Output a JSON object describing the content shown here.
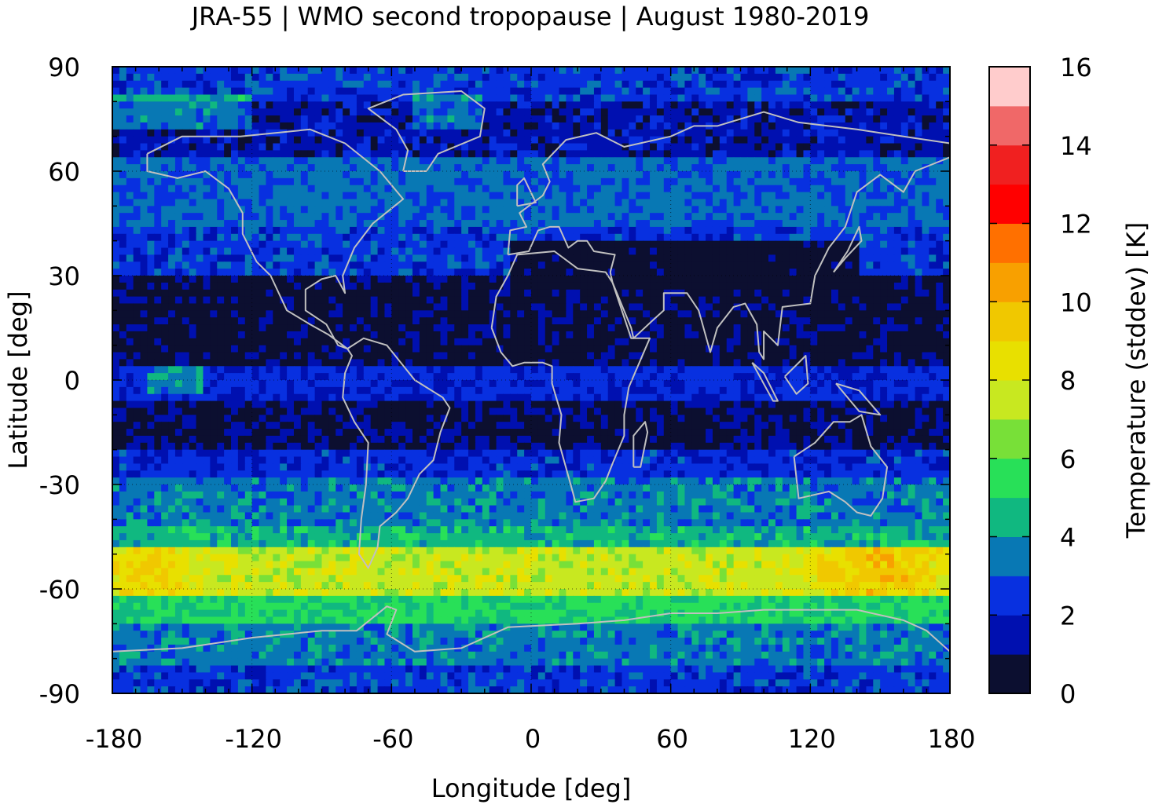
{
  "chart_data": {
    "type": "heatmap",
    "title": "JRA-55 | WMO second tropopause | August 1980-2019",
    "xlabel": "Longitude [deg]",
    "ylabel": "Latitude [deg]",
    "xlim": [
      -180,
      180
    ],
    "ylim": [
      -90,
      90
    ],
    "xticks": [
      -180,
      -120,
      -60,
      0,
      60,
      120,
      180
    ],
    "yticks": [
      90,
      60,
      30,
      0,
      -30,
      -60,
      -90
    ],
    "grid": true,
    "colorbar": {
      "label": "Temperature (stddev) [K]",
      "range": [
        0,
        16
      ],
      "ticks": [
        0,
        2,
        4,
        6,
        8,
        10,
        12,
        14,
        16
      ],
      "levels": [
        0,
        1,
        2,
        3,
        4,
        5,
        6,
        7,
        8,
        9,
        10,
        11,
        12,
        13,
        14,
        15,
        16
      ],
      "colors": [
        "#0c0f30",
        "#0010b0",
        "#0830e0",
        "#0878b4",
        "#10b880",
        "#28e058",
        "#78e038",
        "#c8e820",
        "#e8e000",
        "#f0c800",
        "#f8a000",
        "#ff7000",
        "#ff0000",
        "#f02020",
        "#f06868",
        "#ffcccc"
      ]
    },
    "zonal_structure": [
      {
        "lat_range": [
          80,
          90
        ],
        "value": 2.5
      },
      {
        "lat_range": [
          65,
          80
        ],
        "value": 1.5
      },
      {
        "lat_range": [
          45,
          65
        ],
        "value": 3.2
      },
      {
        "lat_range": [
          30,
          45
        ],
        "value": 2.5
      },
      {
        "lat_range": [
          5,
          30
        ],
        "value": 0.6
      },
      {
        "lat_range": [
          -5,
          5
        ],
        "value": 2.2
      },
      {
        "lat_range": [
          -20,
          -5
        ],
        "value": 0.8
      },
      {
        "lat_range": [
          -28,
          -20
        ],
        "value": 2.3
      },
      {
        "lat_range": [
          -42,
          -28
        ],
        "value": 3.5
      },
      {
        "lat_range": [
          -48,
          -42
        ],
        "value": 4.5
      },
      {
        "lat_range": [
          -62,
          -48
        ],
        "value": 7.5
      },
      {
        "lat_range": [
          -70,
          -62
        ],
        "value": 5.2
      },
      {
        "lat_range": [
          -82,
          -70
        ],
        "value": 3.5
      },
      {
        "lat_range": [
          -90,
          -82
        ],
        "value": 2.5
      }
    ]
  }
}
